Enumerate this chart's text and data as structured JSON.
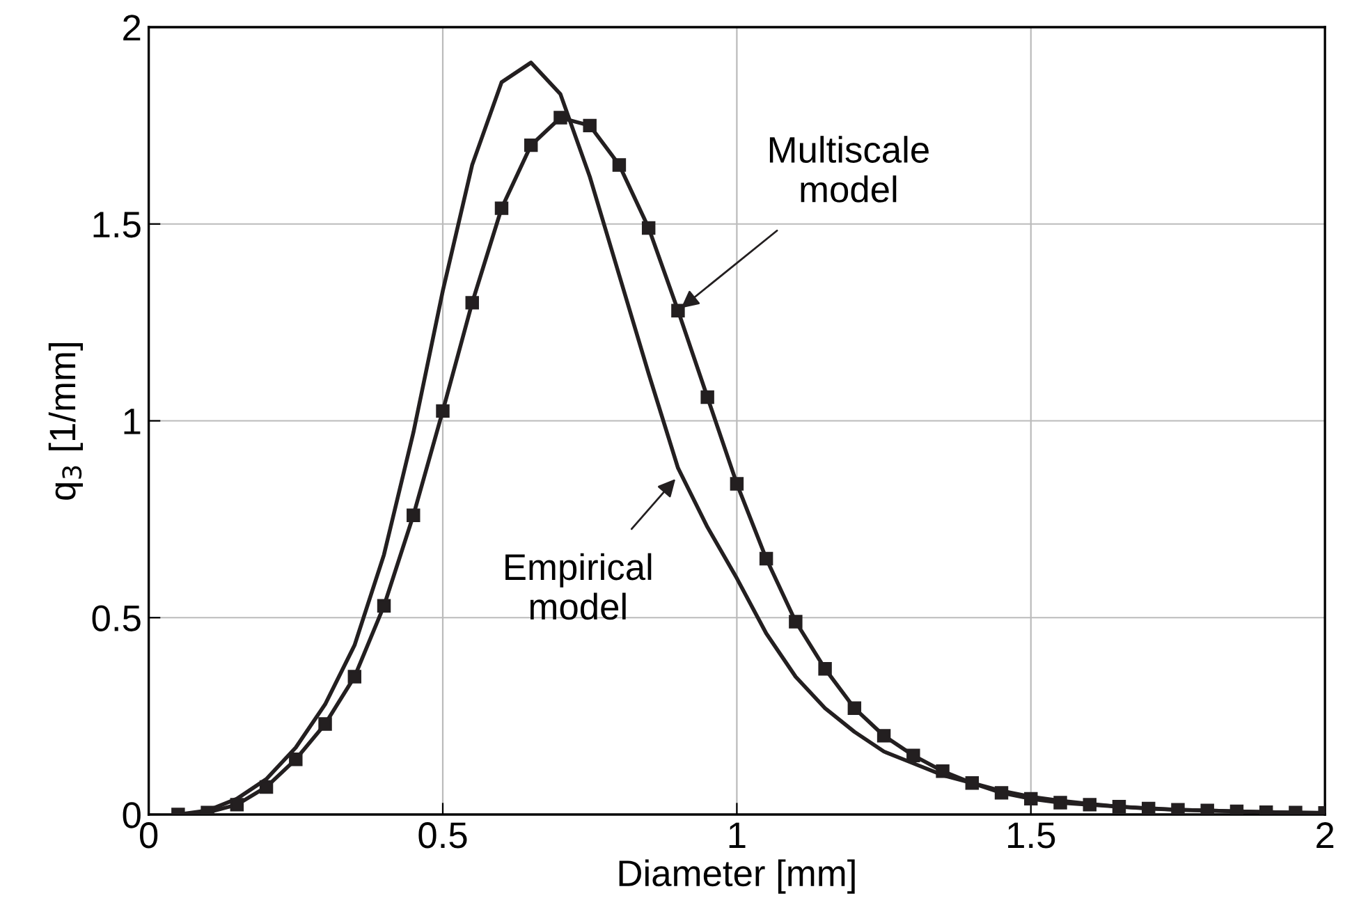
{
  "chart_data": {
    "type": "line",
    "xlabel": "Diameter [mm]",
    "ylabel": "q$_{3}$ [1/mm]",
    "xlim": [
      0,
      2
    ],
    "ylim": [
      0,
      2
    ],
    "xticks": [
      0,
      0.5,
      1,
      1.5,
      2
    ],
    "yticks": [
      0,
      0.5,
      1,
      1.5,
      2
    ],
    "grid": true,
    "line_style": "solid",
    "series": [
      {
        "color": "#231f20",
        "marker": "none",
        "x": [
          0.05,
          0.1,
          0.15,
          0.2,
          0.25,
          0.3,
          0.35,
          0.4,
          0.45,
          0.5,
          0.55,
          0.6,
          0.65,
          0.7,
          0.75,
          0.8,
          0.85,
          0.9,
          0.95,
          1.0,
          1.05,
          1.1,
          1.15,
          1.2,
          1.25,
          1.3,
          1.35,
          1.4,
          1.45,
          1.5,
          1.55,
          1.6,
          1.65,
          1.7,
          1.75,
          1.8,
          1.85,
          1.9,
          1.95,
          2.0
        ],
        "values": [
          0,
          0.01,
          0.04,
          0.09,
          0.17,
          0.28,
          0.43,
          0.66,
          0.97,
          1.33,
          1.65,
          1.86,
          1.91,
          1.83,
          1.62,
          1.37,
          1.12,
          0.88,
          0.73,
          0.6,
          0.46,
          0.35,
          0.27,
          0.21,
          0.16,
          0.13,
          0.1,
          0.08,
          0.06,
          0.045,
          0.035,
          0.027,
          0.02,
          0.016,
          0.012,
          0.01,
          0.008,
          0.006,
          0.005,
          0.004
        ]
      },
      {
        "color": "#231f20",
        "marker": "square",
        "x": [
          0.05,
          0.1,
          0.15,
          0.2,
          0.25,
          0.3,
          0.35,
          0.4,
          0.45,
          0.5,
          0.55,
          0.6,
          0.65,
          0.7,
          0.75,
          0.8,
          0.85,
          0.9,
          0.95,
          1.0,
          1.05,
          1.1,
          1.15,
          1.2,
          1.25,
          1.3,
          1.35,
          1.4,
          1.45,
          1.5,
          1.55,
          1.6,
          1.65,
          1.7,
          1.75,
          1.8,
          1.85,
          1.9,
          1.95,
          2.0
        ],
        "values": [
          0,
          0.005,
          0.025,
          0.07,
          0.14,
          0.23,
          0.35,
          0.53,
          0.76,
          1.025,
          1.3,
          1.54,
          1.7,
          1.77,
          1.75,
          1.65,
          1.49,
          1.28,
          1.06,
          0.84,
          0.65,
          0.49,
          0.37,
          0.27,
          0.2,
          0.15,
          0.11,
          0.08,
          0.055,
          0.04,
          0.03,
          0.025,
          0.02,
          0.015,
          0.012,
          0.01,
          0.008,
          0.006,
          0.005,
          0.004
        ]
      }
    ],
    "annotations": [
      {
        "text": "Multiscale\nmodel",
        "x": 0.9,
        "y": 1.28
      },
      {
        "text": "Empirical\nmodel",
        "x": 0.9,
        "y": 0.86
      }
    ]
  }
}
